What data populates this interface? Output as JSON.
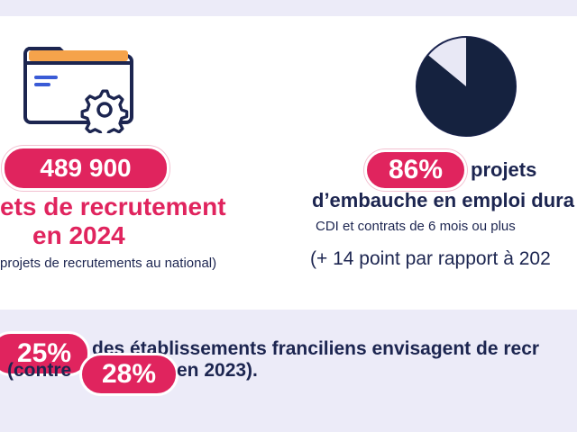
{
  "left_block": {
    "value": "489 900",
    "line1": "ets de recrutement",
    "line2": "en 2024",
    "note": "projets de recrutements au national)"
  },
  "right_block": {
    "percent": "86%",
    "label1": "projets",
    "label2": "d’embauche en emploi dura",
    "note": "CDI et contrats de 6 mois ou plus",
    "comparison": "(+ 14 point par rapport à 202"
  },
  "bottom": {
    "percent1": "25%",
    "text1": "des établissements franciliens envisagent de recr",
    "text2_prefix": "(contre",
    "percent2": "28%",
    "text2_suffix": "en 2023)."
  },
  "pie": {
    "share_dark": 0.86
  },
  "icons": {
    "folder": "folder-gear-icon",
    "pie": "pie-chart-icon"
  },
  "colors": {
    "accent": "#e0245e",
    "navy": "#1c2550",
    "orange": "#f5a34b",
    "lavender": "#ecebf8"
  }
}
